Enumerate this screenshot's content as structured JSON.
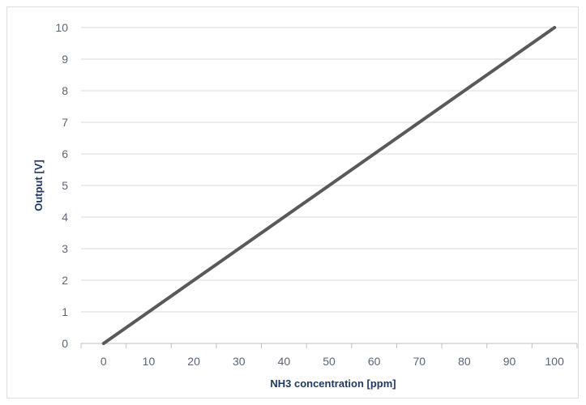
{
  "chart_data": {
    "type": "line",
    "title": "",
    "xlabel": "NH3 concentration [ppm]",
    "ylabel": "Output [V]",
    "xlim": [
      -5,
      105
    ],
    "ylim": [
      0,
      10
    ],
    "x_ticks": [
      0,
      10,
      20,
      30,
      40,
      50,
      60,
      70,
      80,
      90,
      100
    ],
    "y_ticks": [
      0,
      1,
      2,
      3,
      4,
      5,
      6,
      7,
      8,
      9,
      10
    ],
    "grid": "horizontal",
    "legend": "none",
    "series": [
      {
        "x": [
          0,
          100
        ],
        "y": [
          0,
          10
        ],
        "color": "#595959"
      }
    ],
    "colors": {
      "gridline": "#d9d9d9",
      "axis": "#bfbfbf",
      "tick_text": "#5a6578",
      "title_text": "#1f3864"
    }
  }
}
